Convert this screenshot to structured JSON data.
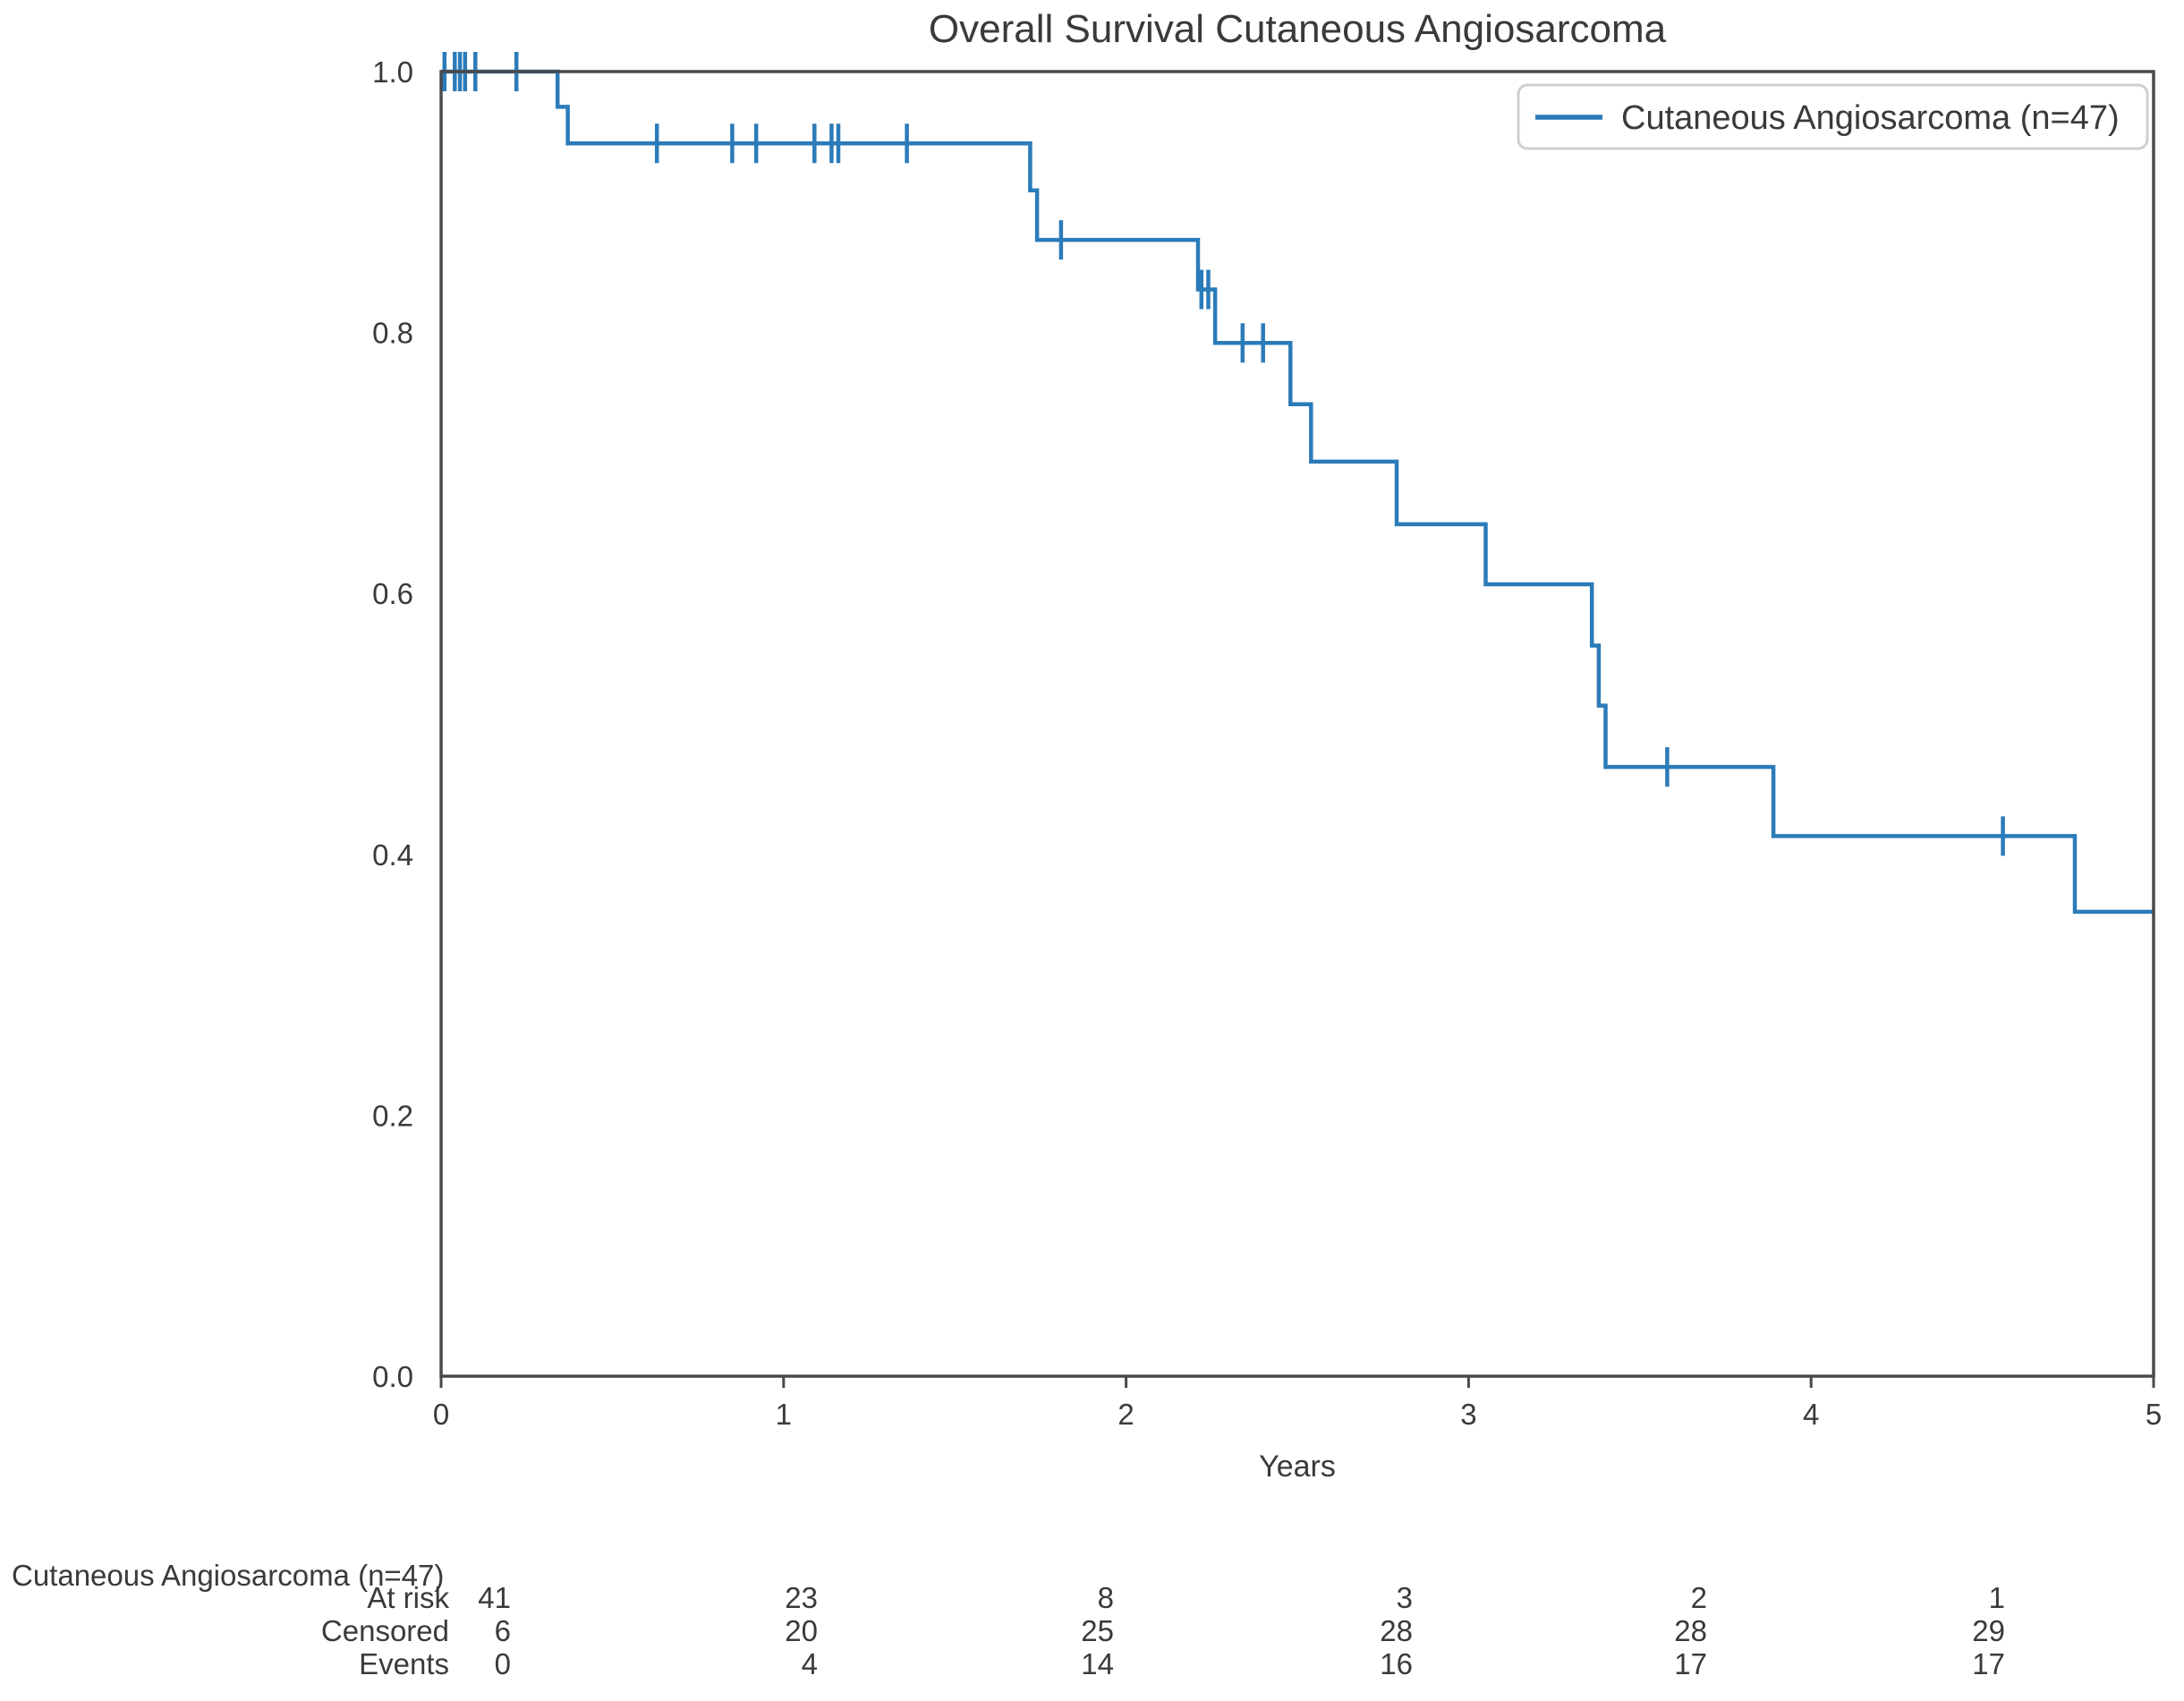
{
  "figure": {
    "title": "Overall Survival Cutaneous Angiosarcoma",
    "xlabel": "Years"
  },
  "colors": {
    "curve": "#2b7bb9",
    "spine": "#4a4a4a",
    "text": "#3a3a3a",
    "legend_border": "#cfcfcf",
    "background": "#ffffff"
  },
  "chart_data": {
    "type": "line",
    "subtype": "kaplan_meier_step",
    "title": "Overall Survival Cutaneous Angiosarcoma",
    "xlabel": "Years",
    "ylabel": "",
    "xlim": [
      0,
      5
    ],
    "ylim": [
      0.0,
      1.0
    ],
    "xticks": [
      "0",
      "1",
      "2",
      "3",
      "4",
      "5"
    ],
    "yticks": [
      "0.0",
      "0.2",
      "0.4",
      "0.6",
      "0.8",
      "1.0"
    ],
    "grid": false,
    "legend": {
      "position": "upper-right",
      "entries": [
        {
          "label": "Cutaneous Angiosarcoma (n=47)",
          "color": "#2b7bb9"
        }
      ]
    },
    "series": [
      {
        "name": "Cutaneous Angiosarcoma (n=47)",
        "color": "#2b7bb9",
        "start": [
          0,
          1.0
        ],
        "end_time": 5.0,
        "steps": [
          [
            0.34,
            0.973
          ],
          [
            0.37,
            0.945
          ],
          [
            1.72,
            0.909
          ],
          [
            1.74,
            0.871
          ],
          [
            2.21,
            0.833
          ],
          [
            2.26,
            0.792
          ],
          [
            2.48,
            0.745
          ],
          [
            2.54,
            0.701
          ],
          [
            2.79,
            0.653
          ],
          [
            3.05,
            0.607
          ],
          [
            3.36,
            0.56
          ],
          [
            3.38,
            0.514
          ],
          [
            3.4,
            0.467
          ],
          [
            3.89,
            0.414
          ],
          [
            4.77,
            0.356
          ]
        ],
        "censored": [
          [
            0.01,
            1.0
          ],
          [
            0.04,
            1.0
          ],
          [
            0.055,
            1.0
          ],
          [
            0.07,
            1.0
          ],
          [
            0.1,
            1.0
          ],
          [
            0.22,
            1.0
          ],
          [
            0.63,
            0.945
          ],
          [
            0.85,
            0.945
          ],
          [
            0.92,
            0.945
          ],
          [
            1.09,
            0.945
          ],
          [
            1.14,
            0.945
          ],
          [
            1.16,
            0.945
          ],
          [
            1.36,
            0.945
          ],
          [
            1.81,
            0.871
          ],
          [
            2.22,
            0.833
          ],
          [
            2.24,
            0.833
          ],
          [
            2.34,
            0.792
          ],
          [
            2.4,
            0.792
          ],
          [
            3.58,
            0.467
          ],
          [
            4.56,
            0.414
          ]
        ]
      }
    ],
    "risk_table": {
      "group_label": "Cutaneous Angiosarcoma (n=47)",
      "times": [
        0,
        1,
        2,
        3,
        4,
        5
      ],
      "rows": [
        {
          "label": "At risk",
          "values": [
            "41",
            "23",
            "8",
            "3",
            "2",
            "1"
          ]
        },
        {
          "label": "Censored",
          "values": [
            "6",
            "20",
            "25",
            "28",
            "28",
            "29"
          ]
        },
        {
          "label": "Events",
          "values": [
            "0",
            "4",
            "14",
            "16",
            "17",
            "17"
          ]
        }
      ]
    }
  }
}
